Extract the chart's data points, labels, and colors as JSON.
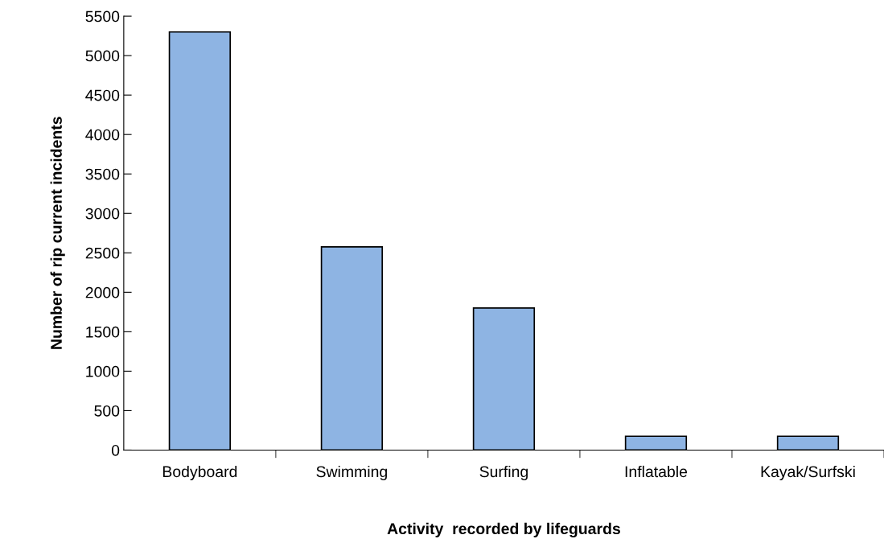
{
  "chart_data": {
    "type": "bar",
    "xlabel": "Activity  recorded by lifeguards",
    "ylabel": "Number of rip current incidents",
    "categories": [
      "Bodyboard",
      "Swimming",
      "Surfing",
      "Inflatable",
      "Kayak/Surfski"
    ],
    "values": [
      5300,
      2575,
      1800,
      175,
      175
    ],
    "color": "#8eb4e3",
    "ylim": [
      0,
      5500
    ],
    "yticks": [
      0,
      500,
      1000,
      1500,
      2000,
      2500,
      3000,
      3500,
      4000,
      4500,
      5000,
      5500
    ],
    "grid": false,
    "legend": false
  }
}
